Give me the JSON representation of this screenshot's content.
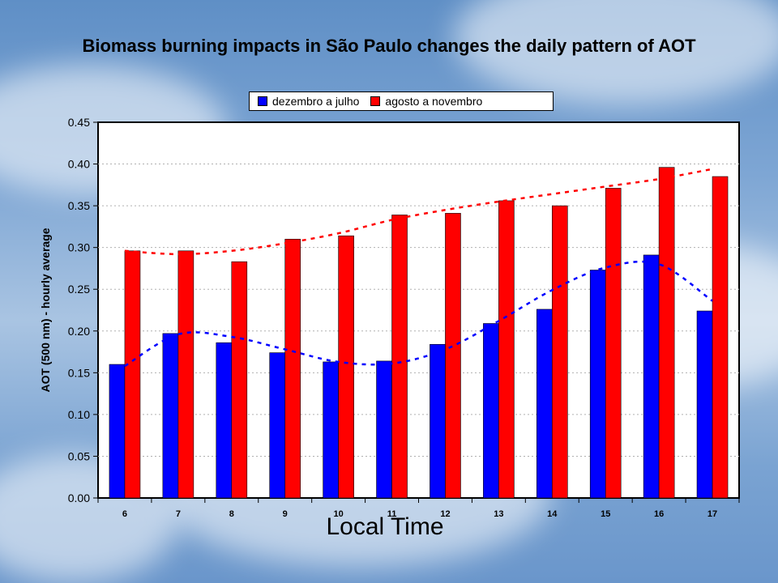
{
  "chart_data": {
    "type": "bar",
    "title": "Biomass burning impacts in São Paulo changes the daily pattern of AOT",
    "xlabel": "Local Time",
    "ylabel": "AOT (500 nm) - hourly average",
    "categories": [
      "6",
      "7",
      "8",
      "9",
      "10",
      "11",
      "12",
      "13",
      "14",
      "15",
      "16",
      "17"
    ],
    "ylim": [
      0,
      0.45
    ],
    "yticks": [
      "0.00",
      "0.05",
      "0.10",
      "0.15",
      "0.20",
      "0.25",
      "0.30",
      "0.35",
      "0.40",
      "0.45"
    ],
    "grid": true,
    "legend_position": "top",
    "series": [
      {
        "name": "dezembro a julho",
        "color": "#0000ff",
        "values": [
          0.16,
          0.197,
          0.186,
          0.174,
          0.163,
          0.164,
          0.184,
          0.209,
          0.226,
          0.273,
          0.291,
          0.224
        ],
        "trend": [
          0.158,
          0.196,
          0.193,
          0.178,
          0.163,
          0.161,
          0.178,
          0.212,
          0.249,
          0.276,
          0.28,
          0.236
        ]
      },
      {
        "name": "agosto a novembro",
        "color": "#ff0000",
        "values": [
          0.296,
          0.296,
          0.283,
          0.31,
          0.314,
          0.339,
          0.341,
          0.356,
          0.35,
          0.371,
          0.396,
          0.385
        ],
        "trend": [
          0.296,
          0.292,
          0.296,
          0.305,
          0.317,
          0.333,
          0.345,
          0.355,
          0.364,
          0.373,
          0.382,
          0.394
        ]
      }
    ]
  }
}
